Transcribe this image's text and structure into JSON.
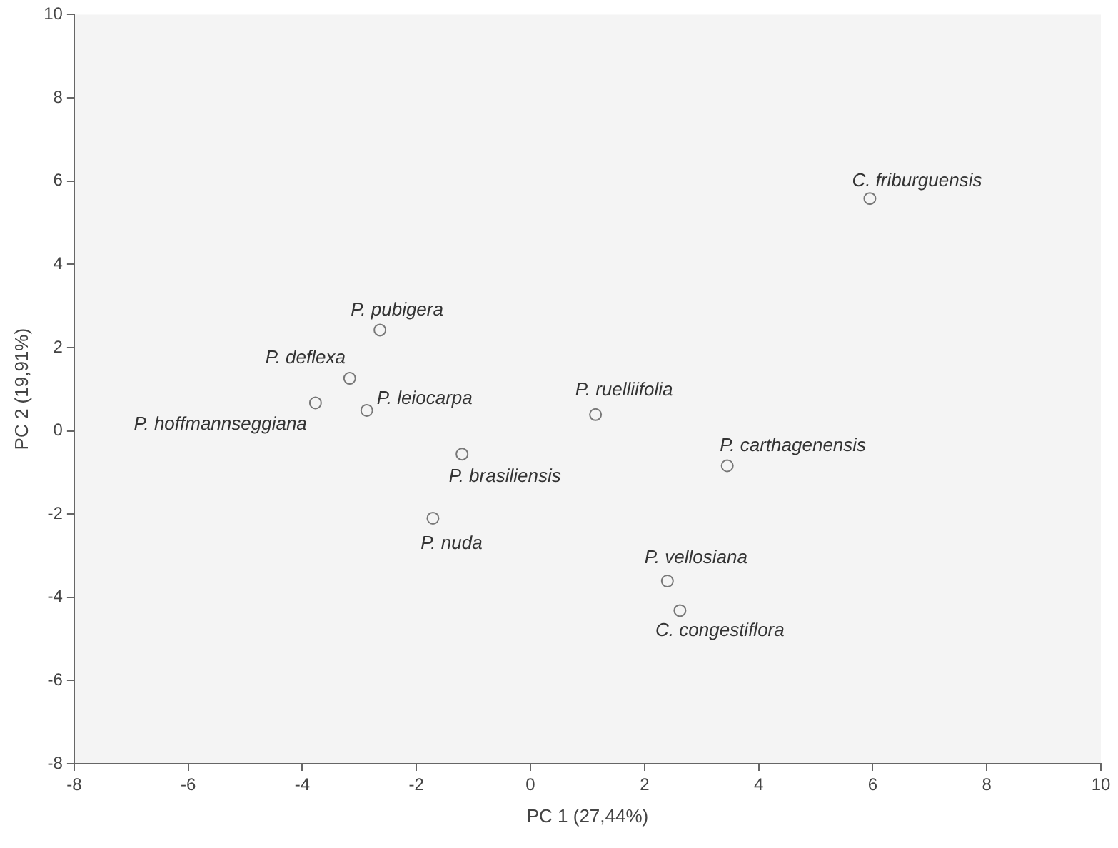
{
  "chart_data": {
    "type": "scatter",
    "xlabel": "PC 1 (27,44%)",
    "ylabel": "PC 2 (19,91%)",
    "x": [
      5.95,
      -2.64,
      -3.17,
      -3.77,
      -2.87,
      1.14,
      -1.2,
      3.45,
      -1.71,
      2.4,
      2.62
    ],
    "series": [
      {
        "color": "#777777",
        "values": [
          5.58,
          2.42,
          1.26,
          0.67,
          0.49,
          0.39,
          -0.56,
          -0.84,
          -2.1,
          -3.61,
          -4.32
        ]
      }
    ],
    "annotations": [
      {
        "text": "C. friburguensis",
        "x": 5.95,
        "y": 5.58
      },
      {
        "text": "P. pubigera",
        "x": -2.64,
        "y": 2.42
      },
      {
        "text": "P. deflexa",
        "x": -3.17,
        "y": 1.26
      },
      {
        "text": "P. hoffmannseggiana",
        "x": -3.77,
        "y": 0.67
      },
      {
        "text": "P. leiocarpa",
        "x": -2.87,
        "y": 0.49
      },
      {
        "text": "P. ruelliifolia",
        "x": 1.14,
        "y": 0.39
      },
      {
        "text": "P. brasiliensis",
        "x": -1.2,
        "y": -0.56
      },
      {
        "text": "P. carthagenensis",
        "x": 3.45,
        "y": -0.84
      },
      {
        "text": "P. nuda",
        "x": -1.71,
        "y": -2.1
      },
      {
        "text": "P. vellosiana",
        "x": 2.4,
        "y": -3.61
      },
      {
        "text": "C. congestiflora",
        "x": 2.62,
        "y": -4.32
      }
    ],
    "xlim": [
      -8,
      10
    ],
    "xticks": [
      -8,
      -6,
      -4,
      -2,
      0,
      2,
      4,
      6,
      8,
      10
    ],
    "ylim": [
      -8,
      10
    ],
    "yticks": [
      -8,
      -6,
      -4,
      -2,
      0,
      2,
      4,
      6,
      8,
      10
    ],
    "grid": false,
    "legend": false,
    "marker": "circle"
  }
}
